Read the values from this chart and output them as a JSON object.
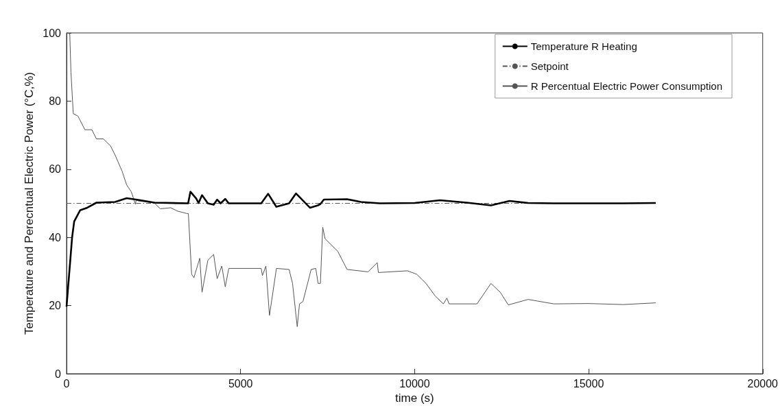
{
  "chart_data": {
    "type": "line",
    "xlabel": "time (s)",
    "ylabel": "Temperature and Perecntual Electric Power (°C,%)",
    "xlim": [
      0,
      20000
    ],
    "xticks": [
      0,
      5000,
      10000,
      15000,
      20000
    ],
    "ylim": [
      0,
      100
    ],
    "yticks": [
      0,
      20,
      40,
      60,
      80,
      100
    ],
    "grid": false,
    "legend": "top right",
    "marker": "none",
    "series": [
      {
        "name": "Temperature R Heating",
        "color": "#000000",
        "line_style": "solid",
        "x": [
          0,
          160,
          220,
          393,
          593,
          860,
          1393,
          1727,
          2060,
          2527,
          3493,
          3560,
          3727,
          3793,
          3893,
          4060,
          4227,
          4327,
          4427,
          4560,
          4660,
          5593,
          5793,
          6027,
          6393,
          6593,
          6993,
          7220,
          7293,
          7393,
          8060,
          8460,
          9000,
          10000,
          10727,
          11500,
          12193,
          12727,
          13260,
          14000,
          15000,
          16000,
          16927
        ],
        "values": [
          19.7,
          40,
          44.7,
          48,
          48.7,
          50.2,
          50.4,
          51.5,
          51,
          50.2,
          50,
          53.4,
          51.4,
          50.1,
          52.4,
          50,
          49.6,
          51.1,
          50,
          51.3,
          50,
          50,
          52.8,
          49,
          50,
          52.9,
          48.7,
          49.4,
          49.8,
          51.1,
          51.2,
          50.4,
          50,
          50.1,
          50.9,
          50.2,
          49.4,
          50.7,
          50.1,
          50,
          50,
          50,
          50.1
        ]
      },
      {
        "name": "Setpoint",
        "color": "#555555",
        "line_style": "dashed",
        "x": [
          0,
          16927
        ],
        "values": [
          50,
          50
        ]
      },
      {
        "name": "R Percentual Electric Power Consumption",
        "color": "#555555",
        "line_style": "solid",
        "x": [
          0,
          93,
          127,
          193,
          327,
          393,
          527,
          727,
          860,
          1060,
          1260,
          1393,
          1593,
          1727,
          1860,
          1980,
          2000,
          2060,
          2527,
          2693,
          2993,
          3193,
          3460,
          3500,
          3593,
          3660,
          3827,
          3893,
          4060,
          4227,
          4327,
          4460,
          4560,
          4660,
          5593,
          5627,
          5727,
          5830,
          6030,
          6393,
          6493,
          6627,
          6693,
          6793,
          7027,
          7160,
          7227,
          7293,
          7360,
          7427,
          7793,
          8060,
          8660,
          8927,
          8960,
          9793,
          10060,
          10327,
          10593,
          10827,
          10927,
          10990,
          11793,
          12193,
          12460,
          12693,
          13260,
          14000,
          15000,
          16000,
          16927
        ],
        "values": [
          100,
          99.8,
          88.4,
          76.3,
          75.6,
          74.3,
          71.6,
          71.6,
          68.9,
          68.9,
          66.9,
          64.2,
          59.5,
          55.4,
          53.4,
          49.7,
          51,
          50.7,
          50.1,
          48.4,
          48.7,
          47.7,
          47,
          47,
          29.2,
          28.2,
          33.9,
          23.9,
          33.3,
          35,
          27.9,
          31.6,
          25.5,
          30.9,
          30.9,
          28.8,
          31.6,
          17.1,
          30.9,
          30.6,
          26.5,
          13.8,
          20.5,
          21.2,
          30.6,
          30.9,
          26.5,
          26.5,
          43,
          39.6,
          35.9,
          30.6,
          29.9,
          32.6,
          29.7,
          30.2,
          29.2,
          26.5,
          22.8,
          20.5,
          22.2,
          20.5,
          20.5,
          26.5,
          23.9,
          20.2,
          21.8,
          20.5,
          20.6,
          20.3,
          20.8
        ]
      }
    ]
  }
}
